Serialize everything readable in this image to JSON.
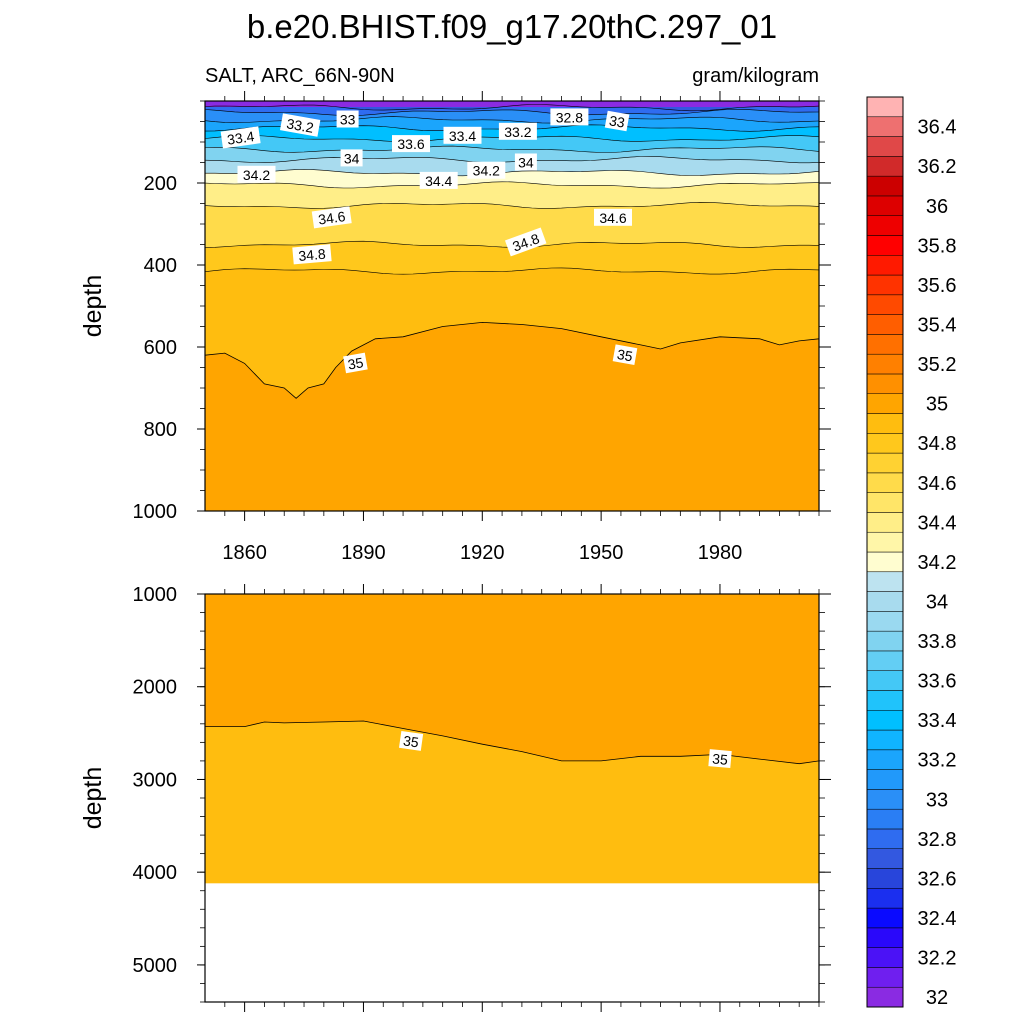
{
  "chart_data": {
    "type": "contour",
    "title": "b.e20.BHIST.f09_g17.20thC.297_01",
    "left_string": "SALT, ARC_66N-90N",
    "right_string": "gram/kilogram",
    "xlabel": "",
    "x_range": [
      1850,
      2005
    ],
    "x_ticks": [
      1860,
      1890,
      1920,
      1950,
      1980
    ],
    "colorbar": {
      "levels": [
        32,
        32.1,
        32.2,
        32.3,
        32.4,
        32.5,
        32.6,
        32.7,
        32.8,
        32.9,
        33,
        33.1,
        33.2,
        33.3,
        33.4,
        33.5,
        33.6,
        33.7,
        33.8,
        33.9,
        34,
        34.1,
        34.2,
        34.3,
        34.4,
        34.5,
        34.6,
        34.7,
        34.8,
        34.9,
        35,
        35.1,
        35.2,
        35.3,
        35.4,
        35.5,
        35.6,
        35.7,
        35.8,
        35.9,
        36,
        36.1,
        36.2,
        36.3,
        36.4,
        36.5
      ],
      "labels": [
        "32",
        "32.2",
        "32.4",
        "32.6",
        "32.8",
        "33",
        "33.2",
        "33.4",
        "33.6",
        "33.8",
        "34",
        "34.2",
        "34.4",
        "34.6",
        "34.8",
        "35",
        "35.2",
        "35.4",
        "35.6",
        "35.8",
        "36",
        "36.2",
        "36.4"
      ],
      "colors": [
        "#8a2be2",
        "#6f1fef",
        "#4b12f6",
        "#2a08fa",
        "#0a0aff",
        "#1b2fef",
        "#2845db",
        "#3358e0",
        "#2f6cf0",
        "#2a7ef4",
        "#2a8ff7",
        "#2199fa",
        "#1ba5fc",
        "#10b4ff",
        "#00bfff",
        "#20c3fb",
        "#44c8f6",
        "#63cef4",
        "#80d3f0",
        "#9ad9f0",
        "#a8dbee",
        "#bde3f0",
        "#fffdd0",
        "#fff6a8",
        "#ffee88",
        "#ffe568",
        "#ffdb4a",
        "#ffd232",
        "#ffc81c",
        "#ffbd0f",
        "#ffa500",
        "#ff9000",
        "#ff8000",
        "#ff7000",
        "#ff5e00",
        "#ff4a00",
        "#ff3300",
        "#ff1a00",
        "#ff0000",
        "#ee0000",
        "#dd0000",
        "#cc0000",
        "#d12a2a",
        "#e04848",
        "#ee7070",
        "#ffb3b3"
      ]
    },
    "panels": [
      {
        "name": "upper",
        "ylabel": "depth",
        "y_range": [
          0,
          1000
        ],
        "y_ticks": [
          200,
          400,
          600,
          800,
          1000
        ],
        "iso_depths": [
          {
            "level": 32.8,
            "depth": 16
          },
          {
            "level": 33.0,
            "depth": 28
          },
          {
            "level": 33.2,
            "depth": 46
          },
          {
            "level": 33.4,
            "depth": 66
          },
          {
            "level": 33.6,
            "depth": 92
          },
          {
            "level": 33.8,
            "depth": 118
          },
          {
            "level": 34.0,
            "depth": 143
          },
          {
            "level": 34.2,
            "depth": 175
          },
          {
            "level": 34.4,
            "depth": 205
          },
          {
            "level": 34.6,
            "depth": 255
          },
          {
            "level": 34.8,
            "depth": 350
          },
          {
            "level": 34.9,
            "depth": 415
          }
        ],
        "contour_35": {
          "x": [
            1850,
            1855,
            1860,
            1865,
            1870,
            1873,
            1876,
            1880,
            1883,
            1887,
            1893,
            1900,
            1910,
            1920,
            1930,
            1940,
            1950,
            1960,
            1965,
            1970,
            1980,
            1990,
            1995,
            2000,
            2005
          ],
          "depth": [
            620,
            615,
            640,
            690,
            700,
            725,
            700,
            690,
            650,
            610,
            580,
            575,
            550,
            540,
            545,
            555,
            575,
            595,
            605,
            590,
            575,
            580,
            595,
            585,
            580
          ]
        },
        "labels": [
          {
            "text": "33.4",
            "x": 1859,
            "depth": 90,
            "angle": -8
          },
          {
            "text": "33.2",
            "x": 1874,
            "depth": 60,
            "angle": 10
          },
          {
            "text": "33",
            "x": 1886,
            "depth": 45,
            "angle": 0
          },
          {
            "text": "33.6",
            "x": 1902,
            "depth": 105,
            "angle": 0
          },
          {
            "text": "33.4",
            "x": 1915,
            "depth": 85,
            "angle": 0
          },
          {
            "text": "33.2",
            "x": 1929,
            "depth": 75,
            "angle": 0
          },
          {
            "text": "32.8",
            "x": 1942,
            "depth": 40,
            "angle": 0
          },
          {
            "text": "33",
            "x": 1954,
            "depth": 50,
            "angle": 10
          },
          {
            "text": "34",
            "x": 1887,
            "depth": 140,
            "angle": 0
          },
          {
            "text": "34.2",
            "x": 1863,
            "depth": 180,
            "angle": 0
          },
          {
            "text": "34.4",
            "x": 1909,
            "depth": 195,
            "angle": 0
          },
          {
            "text": "34.2",
            "x": 1921,
            "depth": 170,
            "angle": 0
          },
          {
            "text": "34",
            "x": 1931,
            "depth": 150,
            "angle": 0
          },
          {
            "text": "34.6",
            "x": 1882,
            "depth": 285,
            "angle": -8
          },
          {
            "text": "34.6",
            "x": 1953,
            "depth": 285,
            "angle": 0
          },
          {
            "text": "34.8",
            "x": 1877,
            "depth": 375,
            "angle": -5
          },
          {
            "text": "34.8",
            "x": 1931,
            "depth": 345,
            "angle": -20
          },
          {
            "text": "35",
            "x": 1888,
            "depth": 640,
            "angle": -10
          },
          {
            "text": "35",
            "x": 1956,
            "depth": 620,
            "angle": 10
          }
        ]
      },
      {
        "name": "lower",
        "ylabel": "depth",
        "y_range": [
          1000,
          5400
        ],
        "y_ticks": [
          1000,
          2000,
          3000,
          4000,
          5000
        ],
        "bottom_depth": 4120,
        "contour_35": {
          "x": [
            1850,
            1860,
            1865,
            1870,
            1880,
            1890,
            1900,
            1910,
            1920,
            1930,
            1940,
            1950,
            1960,
            1970,
            1980,
            1990,
            2000,
            2005
          ],
          "depth": [
            2430,
            2430,
            2380,
            2390,
            2380,
            2370,
            2450,
            2530,
            2620,
            2700,
            2800,
            2800,
            2750,
            2750,
            2730,
            2780,
            2830,
            2800
          ]
        },
        "labels": [
          {
            "text": "35",
            "x": 1902,
            "depth": 2590,
            "angle": 8
          },
          {
            "text": "35",
            "x": 1980,
            "depth": 2780,
            "angle": 5
          }
        ]
      }
    ]
  }
}
